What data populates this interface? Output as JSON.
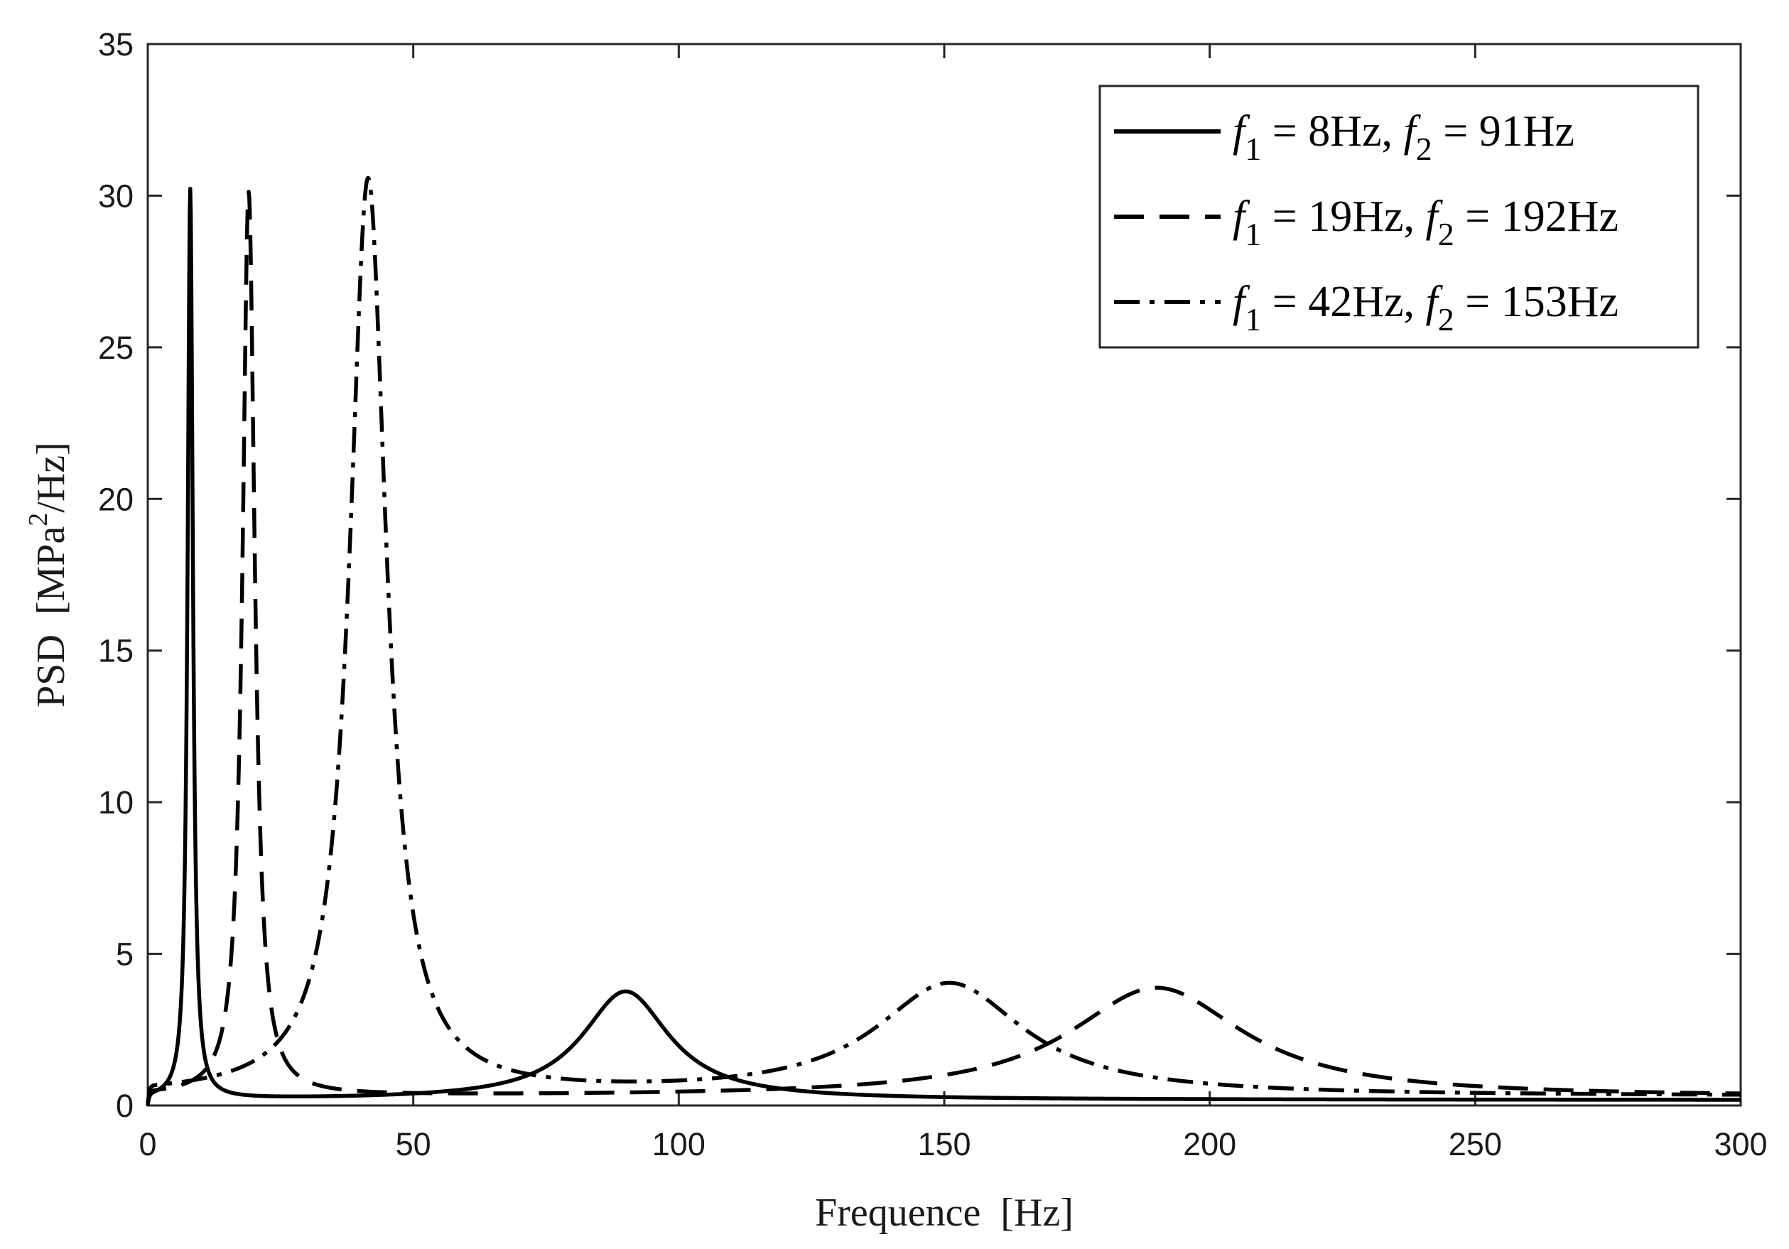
{
  "chart_data": {
    "type": "line",
    "title": "",
    "xlabel": "Frequence  [Hz]",
    "ylabel": "PSD  [MPa",
    "ylabel_sup": "2",
    "ylabel_tail": "/Hz]",
    "xlim": [
      0,
      300
    ],
    "ylim": [
      0,
      35
    ],
    "xticks": [
      0,
      50,
      100,
      150,
      200,
      250,
      300
    ],
    "yticks": [
      0,
      5,
      10,
      15,
      20,
      25,
      30,
      35
    ],
    "grid": false,
    "legend_position": "top-right",
    "series": [
      {
        "name": "f1 = 8Hz, f2 = 91Hz",
        "legend": [
          {
            "t": "f",
            "i": true
          },
          {
            "t": "1",
            "sub": true
          },
          {
            "t": " = 8Hz, "
          },
          {
            "t": "f",
            "i": true
          },
          {
            "t": "2",
            "sub": true
          },
          {
            "t": " = 91Hz"
          }
        ],
        "dash": "solid",
        "peaks": [
          {
            "f": 8,
            "a": 30.0,
            "w": 0.6
          },
          {
            "f": 90,
            "a": 3.58,
            "w": 10
          }
        ],
        "base": 0.18,
        "start": 2.0
      },
      {
        "name": "f1 = 19Hz, f2 = 192Hz",
        "legend": [
          {
            "t": "f",
            "i": true
          },
          {
            "t": "1",
            "sub": true
          },
          {
            "t": " = 19Hz, "
          },
          {
            "t": "f",
            "i": true
          },
          {
            "t": "2",
            "sub": true
          },
          {
            "t": " = 192Hz"
          }
        ],
        "dash": "dashed",
        "peaks": [
          {
            "f": 19,
            "a": 29.8,
            "w": 1.4
          },
          {
            "f": 190,
            "a": 3.6,
            "w": 20
          }
        ],
        "base": 0.28,
        "start": 2.0
      },
      {
        "name": "f1 = 42Hz, f2 = 153Hz",
        "legend": [
          {
            "t": "f",
            "i": true
          },
          {
            "t": "1",
            "sub": true
          },
          {
            "t": " = 42Hz, "
          },
          {
            "t": "f",
            "i": true
          },
          {
            "t": "2",
            "sub": true
          },
          {
            "t": " = 153Hz"
          }
        ],
        "dash": "dash-dot",
        "peaks": [
          {
            "f": 41.5,
            "a": 30.2,
            "w": 4.2
          },
          {
            "f": 151,
            "a": 3.7,
            "w": 17
          }
        ],
        "base": 0.3,
        "start": 2.0
      }
    ]
  }
}
